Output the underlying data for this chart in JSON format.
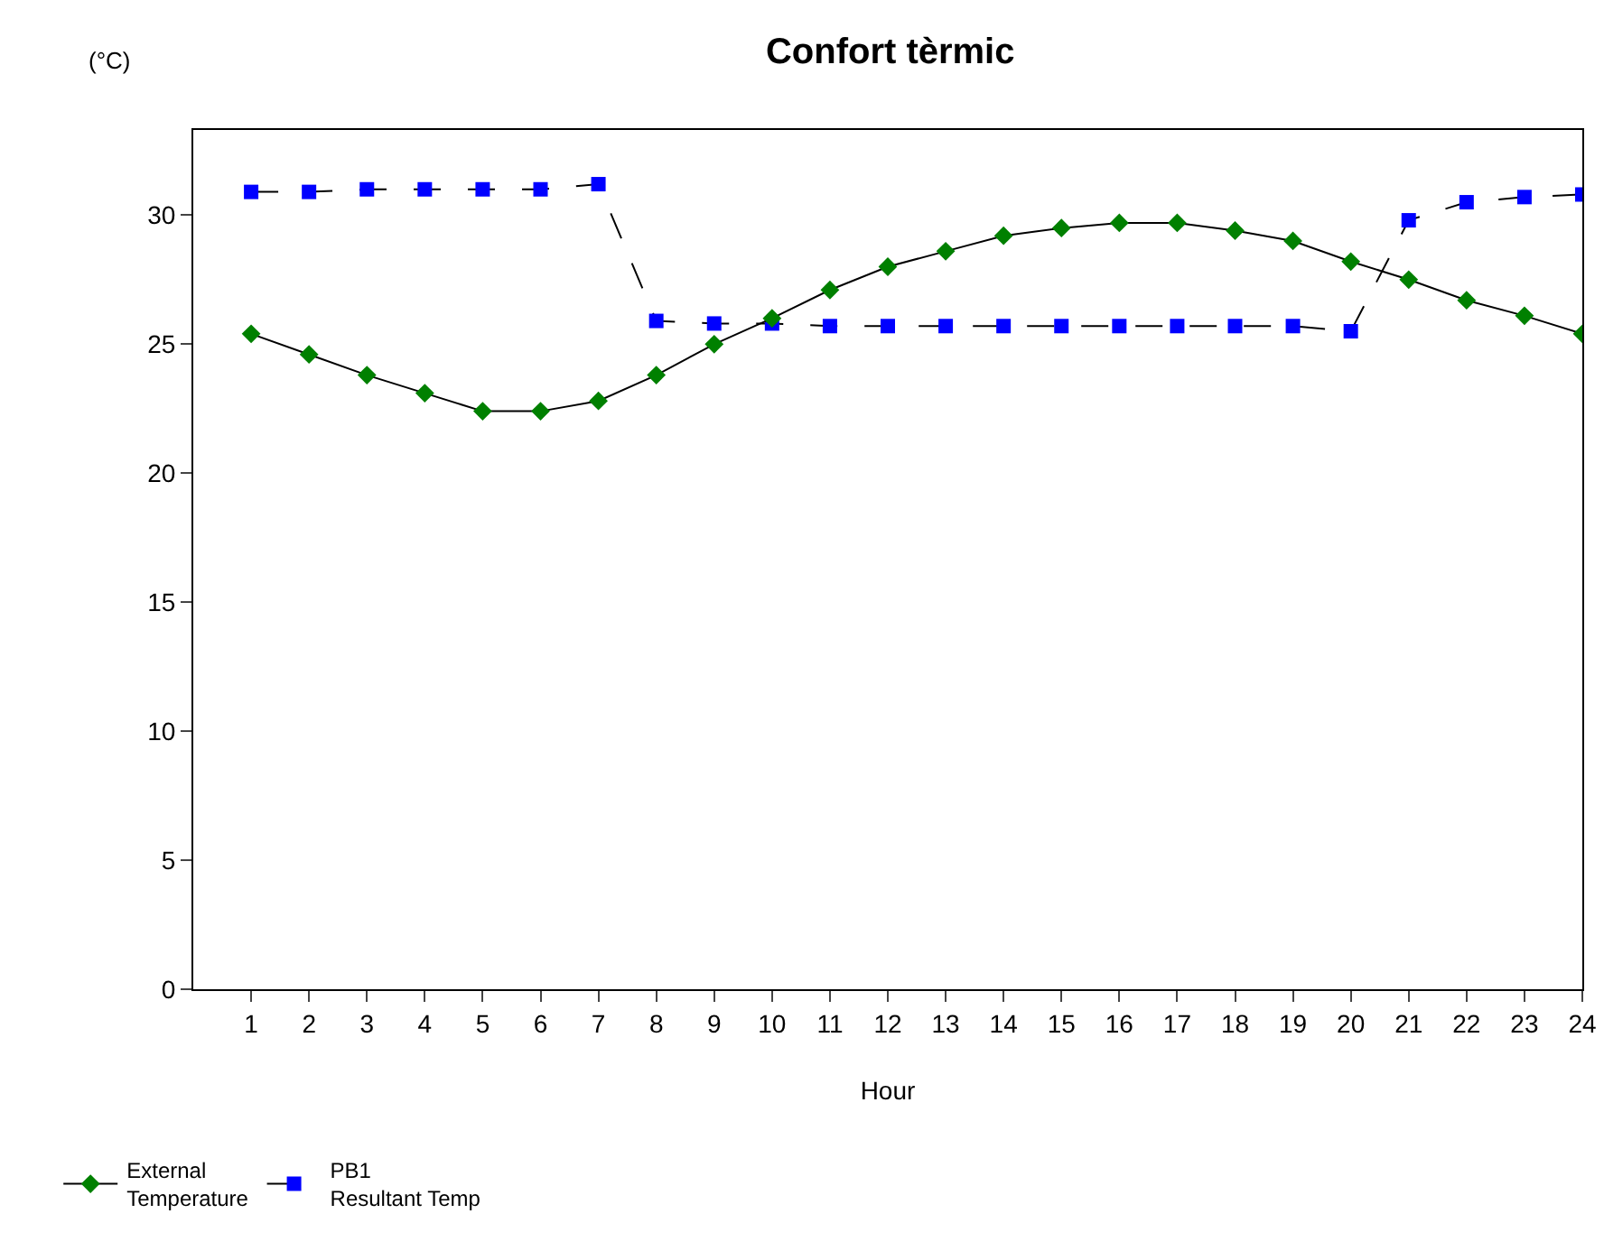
{
  "chart_data": {
    "type": "line",
    "title": "Confort tèrmic",
    "xlabel": "Hour",
    "ylabel": "(°C)",
    "x": [
      1,
      2,
      3,
      4,
      5,
      6,
      7,
      8,
      9,
      10,
      11,
      12,
      13,
      14,
      15,
      16,
      17,
      18,
      19,
      20,
      21,
      22,
      23,
      24
    ],
    "xlim": [
      0,
      24
    ],
    "xticks": [
      1,
      2,
      3,
      4,
      5,
      6,
      7,
      8,
      9,
      10,
      11,
      12,
      13,
      14,
      15,
      16,
      17,
      18,
      19,
      20,
      21,
      22,
      23,
      24
    ],
    "ylim": [
      0,
      33.3
    ],
    "yticks": [
      0,
      5,
      10,
      15,
      20,
      25,
      30
    ],
    "grid": false,
    "legend": "bottom left",
    "series": [
      {
        "name": "External\nTemperature",
        "color": "#008000",
        "marker": "diamond",
        "line_style": "solid",
        "values": [
          25.4,
          24.6,
          23.8,
          23.1,
          22.4,
          22.4,
          22.8,
          23.8,
          25.0,
          26.0,
          27.1,
          28.0,
          28.6,
          29.2,
          29.5,
          29.7,
          29.7,
          29.4,
          29.0,
          28.2,
          27.5,
          26.7,
          26.1,
          25.4
        ]
      },
      {
        "name": "PB1\nResultant Temp",
        "color": "#0000ff",
        "marker": "square",
        "line_style": "dashed",
        "values": [
          30.9,
          30.9,
          31.0,
          31.0,
          31.0,
          31.0,
          31.2,
          25.9,
          25.8,
          25.8,
          25.7,
          25.7,
          25.7,
          25.7,
          25.7,
          25.7,
          25.7,
          25.7,
          25.7,
          25.5,
          29.8,
          30.5,
          30.7,
          30.8
        ]
      }
    ]
  }
}
